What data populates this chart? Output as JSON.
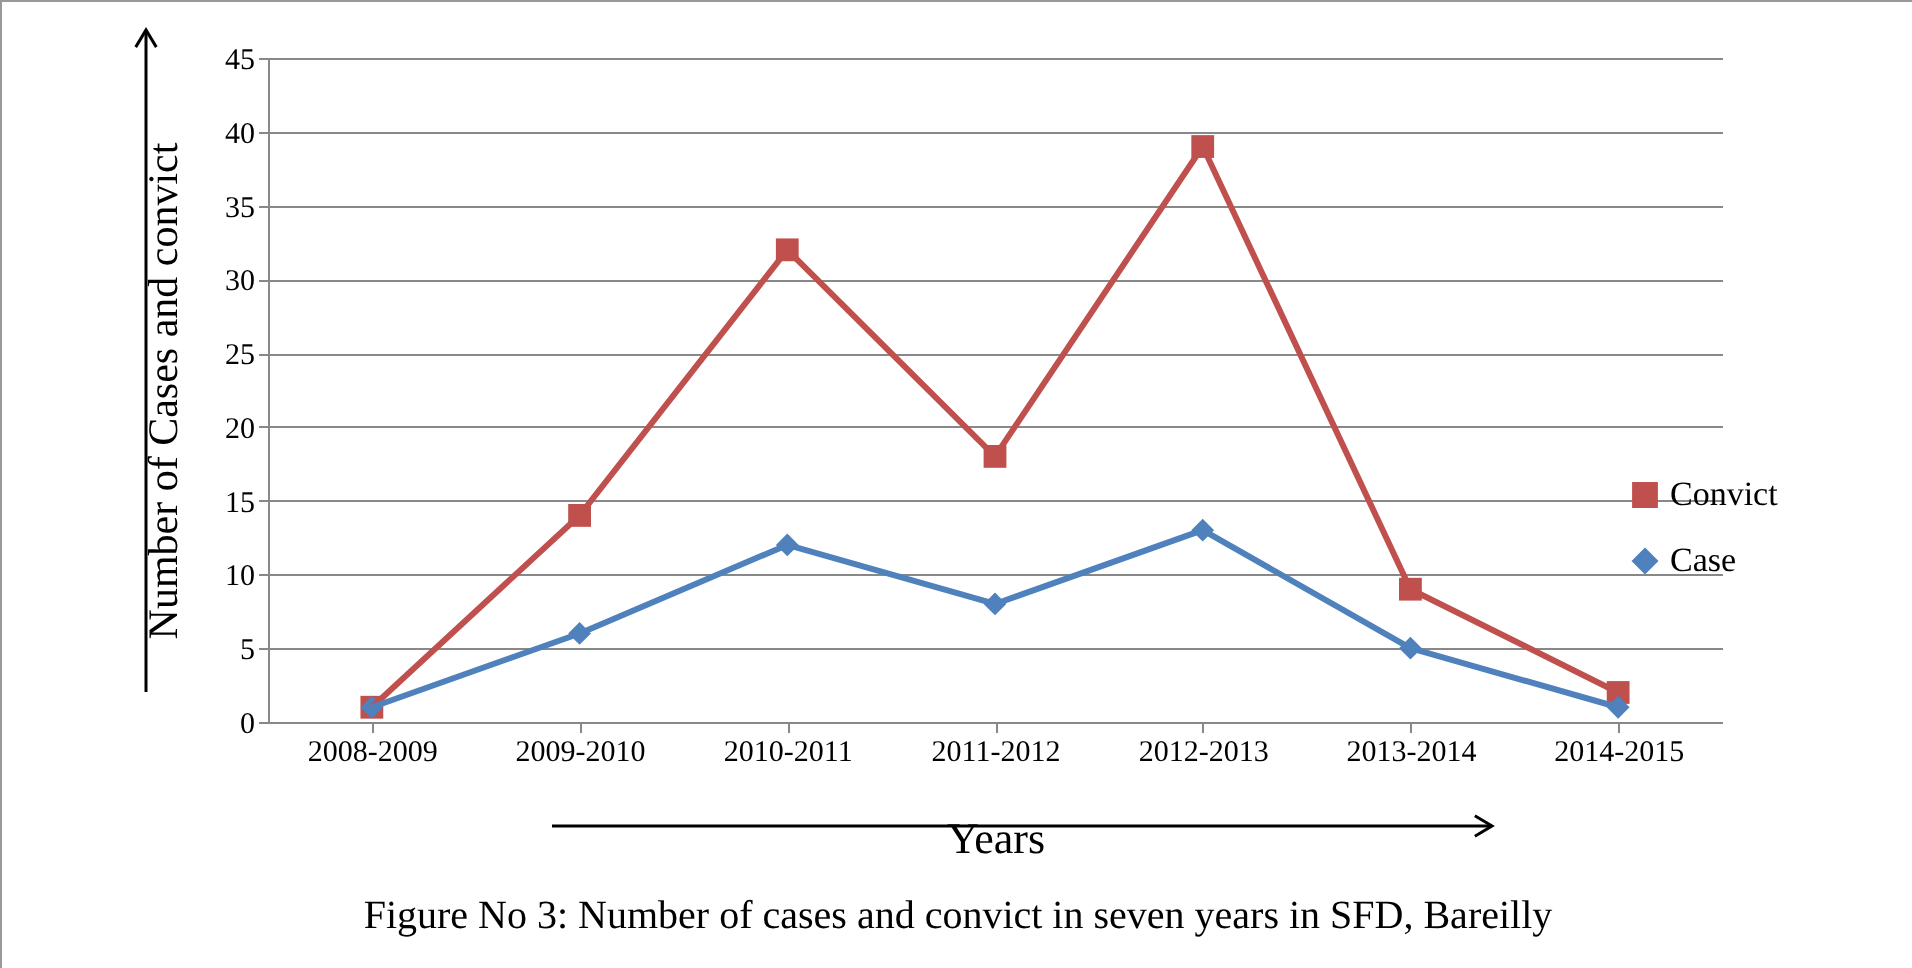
{
  "chart_data": {
    "type": "line",
    "ylabel": "Number of Cases and convict",
    "xlabel": "Years",
    "categories": [
      "2008-2009",
      "2009-2010",
      "2010-2011",
      "2011-2012",
      "2012-2013",
      "2013-2014",
      "2014-2015"
    ],
    "series": [
      {
        "name": "Convict",
        "color": "#c0504d",
        "marker": "square",
        "values": [
          1,
          14,
          32,
          18,
          39,
          9,
          2
        ]
      },
      {
        "name": "Case",
        "color": "#4f81bd",
        "marker": "diamond",
        "values": [
          1,
          6,
          12,
          8,
          13,
          5,
          1
        ]
      }
    ],
    "ylim": [
      0,
      45
    ],
    "yticks": [
      0,
      5,
      10,
      15,
      20,
      25,
      30,
      35,
      40,
      45
    ],
    "grid": "y",
    "legend": "right",
    "line_style": "solid",
    "annotations": [
      "Figure No 3: Number of cases and convict in seven years in SFD, Bareilly"
    ]
  }
}
